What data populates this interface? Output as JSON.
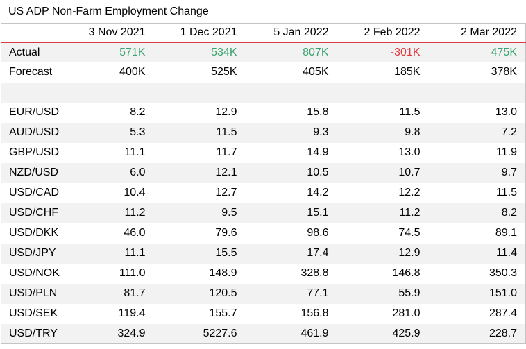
{
  "title": "US ADP Non-Farm Employment Change",
  "colors": {
    "positive": "#3aa46f",
    "negative": "#e0383c",
    "header_rule": "#d93a43",
    "row_shade": "#f2f2f2"
  },
  "columns": [
    "",
    "3 Nov 2021",
    "1 Dec 2021",
    "5 Jan 2022",
    "2 Feb 2022",
    "2 Mar 2022"
  ],
  "actual": {
    "label": "Actual",
    "values": [
      "571K",
      "534K",
      "807K",
      "-301K",
      "475K"
    ]
  },
  "forecast": {
    "label": "Forecast",
    "values": [
      "400K",
      "525K",
      "405K",
      "185K",
      "378K"
    ]
  },
  "pairs": [
    {
      "name": "EUR/USD",
      "values": [
        "8.2",
        "12.9",
        "15.8",
        "11.5",
        "13.0"
      ]
    },
    {
      "name": "AUD/USD",
      "values": [
        "5.3",
        "11.5",
        "9.3",
        "9.8",
        "7.2"
      ]
    },
    {
      "name": "GBP/USD",
      "values": [
        "11.1",
        "11.7",
        "14.9",
        "13.0",
        "11.9"
      ]
    },
    {
      "name": "NZD/USD",
      "values": [
        "6.0",
        "12.1",
        "10.5",
        "10.7",
        "9.7"
      ]
    },
    {
      "name": "USD/CAD",
      "values": [
        "10.4",
        "12.7",
        "14.2",
        "12.2",
        "11.5"
      ]
    },
    {
      "name": "USD/CHF",
      "values": [
        "11.2",
        "9.5",
        "15.1",
        "11.2",
        "8.2"
      ]
    },
    {
      "name": "USD/DKK",
      "values": [
        "46.0",
        "79.6",
        "98.6",
        "74.5",
        "89.1"
      ]
    },
    {
      "name": "USD/JPY",
      "values": [
        "11.1",
        "15.5",
        "17.4",
        "12.9",
        "11.4"
      ]
    },
    {
      "name": "USD/NOK",
      "values": [
        "111.0",
        "148.9",
        "328.8",
        "146.8",
        "350.3"
      ]
    },
    {
      "name": "USD/PLN",
      "values": [
        "81.7",
        "120.5",
        "77.1",
        "55.9",
        "151.0"
      ]
    },
    {
      "name": "USD/SEK",
      "values": [
        "119.4",
        "155.7",
        "156.8",
        "281.0",
        "287.4"
      ]
    },
    {
      "name": "USD/TRY",
      "values": [
        "324.9",
        "5227.6",
        "461.9",
        "425.9",
        "228.7"
      ]
    }
  ]
}
